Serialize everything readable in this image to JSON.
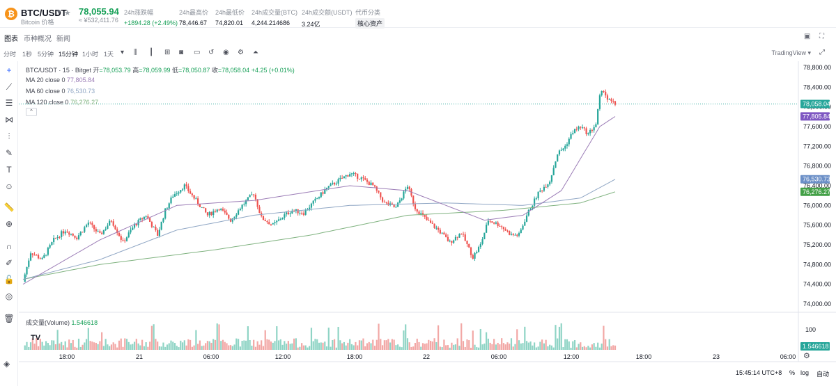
{
  "ticker": {
    "symbol": "BTC/USDT",
    "name": "Bitcoin 价格",
    "price": "78,055.94",
    "price_cny": "≈ ¥532,411.76",
    "stats": [
      {
        "label": "24h涨跌幅",
        "value": "+1894.28 (+2.49%)",
        "up": true
      },
      {
        "label": "24h最高价",
        "value": "78,446.67"
      },
      {
        "label": "24h最低价",
        "value": "74,820.01"
      },
      {
        "label": "24h成交量(BTC)",
        "value": "4,244.214686"
      },
      {
        "label": "24h成交额(USDT)",
        "value": "3.24亿"
      },
      {
        "label": "代币分类",
        "value": "核心资产"
      }
    ],
    "accent_up": "#18a058",
    "accent_down": "#f5515f"
  },
  "tabs": [
    "图表",
    "币种概况",
    "新闻"
  ],
  "intervals": [
    "分时",
    "1秒",
    "5分钟",
    "15分钟",
    "1小时",
    "1天"
  ],
  "active_interval": "15分钟",
  "toolbar_icons": [
    "caret-down-icon",
    "bars-icon",
    "candles-icon",
    "indicators-icon",
    "camera-icon",
    "layout-icon",
    "undo-icon",
    "circle-icon",
    "gear-icon",
    "alert-icon"
  ],
  "tv_brand": "TradingView ▾",
  "left_tools": [
    "crosshair-icon",
    "trend-line-icon",
    "hline-icon",
    "pattern-icon",
    "fib-icon",
    "brush-icon",
    "text-icon",
    "emoji-icon",
    "ruler-icon",
    "zoom-icon",
    "magnet-icon",
    "pencil-lock-icon",
    "lock-icon",
    "eye-icon",
    "trash-icon"
  ],
  "legend": {
    "title": "BTC/USDT · 15 · Bitget",
    "open_label": "开",
    "open": "=78,053.79",
    "high_label": "高",
    "high": "=78,059.99",
    "low_label": "低",
    "low": "=78,050.87",
    "close_label": "收",
    "close": "=78,058.04",
    "change": "+4.25 (+0.01%)",
    "ma20_label": "MA 20 close 0",
    "ma20": "77,805.84",
    "ma60_label": "MA 60 close 0",
    "ma60": "76,530.73",
    "ma120_label": "MA 120 close 0",
    "ma120": "76,276.27",
    "volume_label": "成交量(Volume)",
    "volume": "1.546618"
  },
  "bottom": {
    "time": "15:45:14 UTC+8",
    "percent": "%",
    "log": "log",
    "auto": "自动"
  },
  "chart_data": {
    "type": "candlestick",
    "title": "BTC/USDT · 15 · Bitget",
    "y_ticks": [
      "78,800.00",
      "78,400.00",
      "78,000.00",
      "77,600.00",
      "77,200.00",
      "76,800.00",
      "76,400.00",
      "76,000.00",
      "75,600.00",
      "75,200.00",
      "74,800.00",
      "74,400.00",
      "74,000.00"
    ],
    "y_range": [
      74000,
      78800
    ],
    "x_ticks": [
      "18:00",
      "21",
      "06:00",
      "12:00",
      "18:00",
      "22",
      "06:00",
      "12:00",
      "18:00",
      "23",
      "06:00"
    ],
    "price_labels": {
      "last": {
        "value": 78058.04,
        "text": "78,058.04",
        "color": "#26a69a"
      },
      "ma20": {
        "value": 77805.84,
        "text": "77,805.84",
        "color": "#7e57c2"
      },
      "ma60": {
        "value": 76530.73,
        "text": "76,530.73",
        "color": "#6b8fc7"
      },
      "ma120": {
        "value": 76276.27,
        "text": "76,276.27",
        "color": "#43a047"
      }
    },
    "volume_tick": "100",
    "volume_last": "1.546618",
    "close_anchors": [
      [
        0,
        74450
      ],
      [
        4,
        75050
      ],
      [
        10,
        74900
      ],
      [
        16,
        75300
      ],
      [
        22,
        75500
      ],
      [
        28,
        75350
      ],
      [
        34,
        75650
      ],
      [
        40,
        75400
      ],
      [
        46,
        75700
      ],
      [
        52,
        75250
      ],
      [
        58,
        75600
      ],
      [
        64,
        75800
      ],
      [
        70,
        75400
      ],
      [
        74,
        75900
      ],
      [
        78,
        76200
      ],
      [
        84,
        76400
      ],
      [
        90,
        76100
      ],
      [
        96,
        75800
      ],
      [
        102,
        75950
      ],
      [
        108,
        75700
      ],
      [
        114,
        76000
      ],
      [
        120,
        76250
      ],
      [
        124,
        75750
      ],
      [
        130,
        75600
      ],
      [
        136,
        75800
      ],
      [
        140,
        75900
      ],
      [
        146,
        75850
      ],
      [
        152,
        76100
      ],
      [
        158,
        76350
      ],
      [
        164,
        76500
      ],
      [
        170,
        76650
      ],
      [
        176,
        76550
      ],
      [
        182,
        76400
      ],
      [
        188,
        76050
      ],
      [
        194,
        75950
      ],
      [
        200,
        76400
      ],
      [
        204,
        75950
      ],
      [
        210,
        75700
      ],
      [
        216,
        75500
      ],
      [
        222,
        75250
      ],
      [
        228,
        75450
      ],
      [
        234,
        74950
      ],
      [
        238,
        75200
      ],
      [
        242,
        75700
      ],
      [
        248,
        75600
      ],
      [
        254,
        75400
      ],
      [
        258,
        75400
      ],
      [
        262,
        75800
      ],
      [
        268,
        76250
      ],
      [
        274,
        76500
      ],
      [
        278,
        77050
      ],
      [
        282,
        77200
      ],
      [
        286,
        77500
      ],
      [
        290,
        77600
      ],
      [
        294,
        77450
      ],
      [
        298,
        77650
      ],
      [
        300,
        78200
      ],
      [
        302,
        78350
      ],
      [
        304,
        78150
      ],
      [
        308,
        78050
      ]
    ],
    "ma20_anchors": [
      [
        0,
        74400
      ],
      [
        40,
        75300
      ],
      [
        80,
        76000
      ],
      [
        120,
        76100
      ],
      [
        170,
        76400
      ],
      [
        200,
        76300
      ],
      [
        240,
        75700
      ],
      [
        260,
        75800
      ],
      [
        280,
        76300
      ],
      [
        300,
        77600
      ],
      [
        308,
        77805
      ]
    ],
    "ma60_anchors": [
      [
        0,
        74500
      ],
      [
        40,
        74900
      ],
      [
        80,
        75500
      ],
      [
        120,
        75800
      ],
      [
        170,
        76000
      ],
      [
        220,
        76050
      ],
      [
        260,
        76000
      ],
      [
        290,
        76150
      ],
      [
        308,
        76530
      ]
    ],
    "ma120_anchors": [
      [
        0,
        74500
      ],
      [
        40,
        74800
      ],
      [
        100,
        75100
      ],
      [
        150,
        75400
      ],
      [
        200,
        75800
      ],
      [
        250,
        75900
      ],
      [
        290,
        76050
      ],
      [
        308,
        76276
      ]
    ]
  }
}
